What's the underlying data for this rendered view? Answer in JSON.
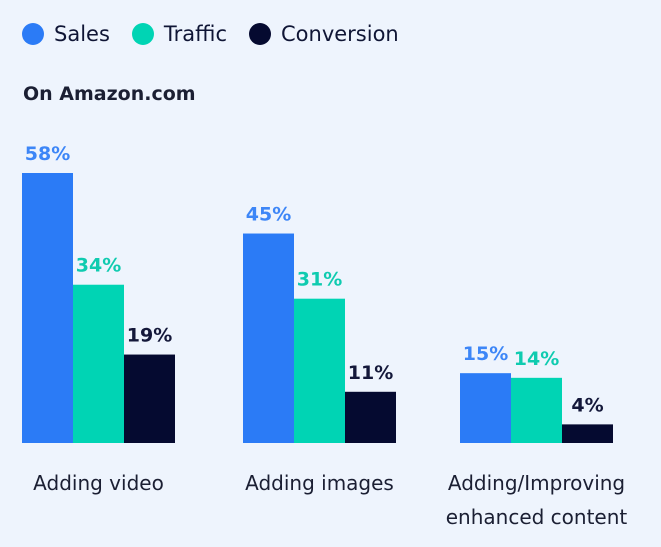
{
  "chart_data": {
    "type": "bar",
    "subtitle": "On Amazon.com",
    "categories": [
      [
        "Adding video"
      ],
      [
        "Adding images"
      ],
      [
        "Adding/Improving",
        "enhanced content"
      ]
    ],
    "series": [
      {
        "name": "Sales",
        "color": "#2b7bf6",
        "values": [
          58,
          45,
          15
        ],
        "labels": [
          "58%",
          "45%",
          "15%"
        ]
      },
      {
        "name": "Traffic",
        "color": "#00d4b4",
        "values": [
          34,
          31,
          14
        ],
        "labels": [
          "34%",
          "31%",
          "14%"
        ]
      },
      {
        "name": "Conversion",
        "color": "#050a30",
        "values": [
          19,
          11,
          4
        ],
        "labels": [
          "19%",
          "11%",
          "4%"
        ]
      }
    ],
    "label_colors": [
      "#3d86f7",
      "#0fcbb0",
      "#14183a"
    ],
    "ylim": [
      0,
      58
    ],
    "grid": false,
    "legend": "top-left"
  }
}
